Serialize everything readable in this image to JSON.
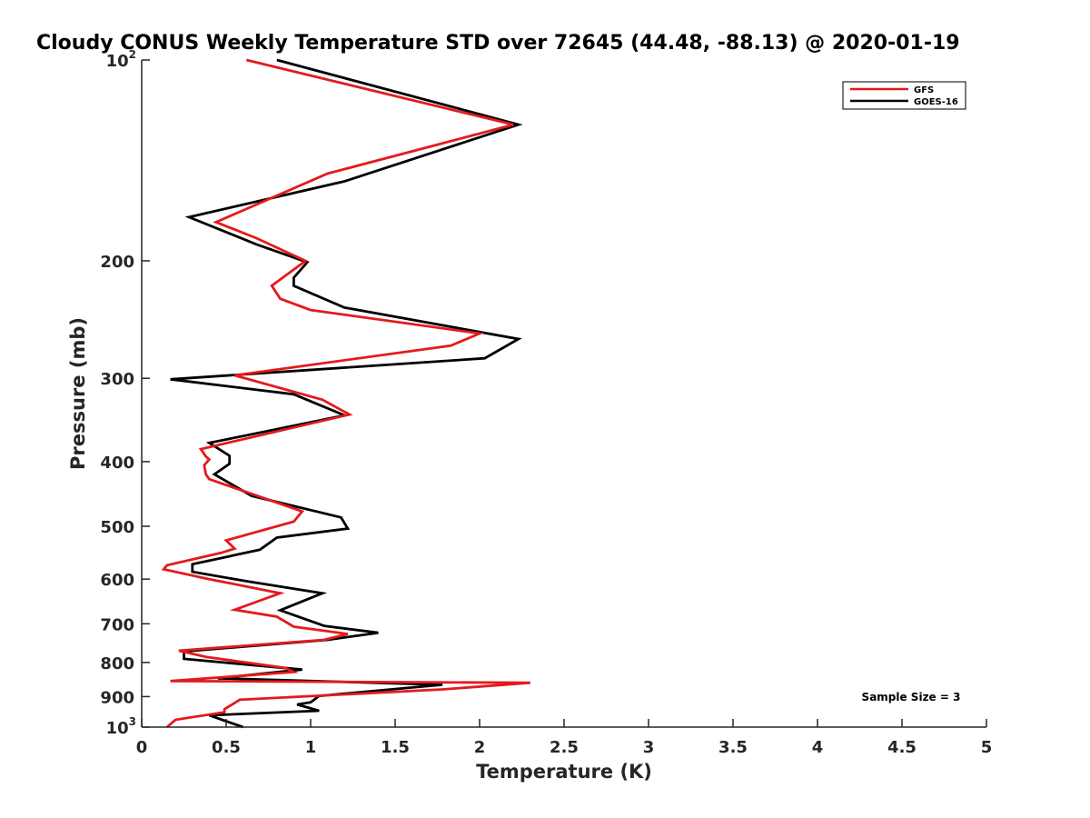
{
  "chart_data": {
    "type": "line",
    "title": "Cloudy CONUS Weekly Temperature STD over 72645 (44.48, -88.13) @ 2020-01-19",
    "xlabel": "Temperature (K)",
    "ylabel": "Pressure (mb)",
    "xlim": [
      0,
      5
    ],
    "ylim": [
      100,
      1000
    ],
    "y_scale": "log",
    "y_reversed": true,
    "grid": false,
    "legend_position": "top-right",
    "x_ticks": [
      "0",
      "0.5",
      "1",
      "1.5",
      "2",
      "2.5",
      "3",
      "3.5",
      "4",
      "4.5",
      "5"
    ],
    "y_ticks": [
      {
        "base": "10",
        "exp": "2",
        "value": 100
      },
      {
        "base": "200",
        "exp": "",
        "value": 200
      },
      {
        "base": "300",
        "exp": "",
        "value": 300
      },
      {
        "base": "400",
        "exp": "",
        "value": 400
      },
      {
        "base": "500",
        "exp": "",
        "value": 500
      },
      {
        "base": "600",
        "exp": "",
        "value": 600
      },
      {
        "base": "700",
        "exp": "",
        "value": 700
      },
      {
        "base": "800",
        "exp": "",
        "value": 800
      },
      {
        "base": "900",
        "exp": "",
        "value": 900
      },
      {
        "base": "10",
        "exp": "3",
        "value": 1000
      }
    ],
    "annotation": "Sample Size = 3",
    "series": [
      {
        "name": "GFS",
        "color": "#e41a1c",
        "points": [
          [
            0.62,
            100
          ],
          [
            2.2,
            125
          ],
          [
            1.1,
            148
          ],
          [
            0.44,
            175
          ],
          [
            0.68,
            185
          ],
          [
            0.97,
            200
          ],
          [
            0.77,
            218
          ],
          [
            0.82,
            228
          ],
          [
            1.0,
            237
          ],
          [
            2.0,
            257
          ],
          [
            1.83,
            268
          ],
          [
            0.55,
            297
          ],
          [
            1.07,
            323
          ],
          [
            1.23,
            340
          ],
          [
            0.35,
            383
          ],
          [
            0.38,
            393
          ],
          [
            0.4,
            397
          ],
          [
            0.37,
            405
          ],
          [
            0.38,
            418
          ],
          [
            0.4,
            425
          ],
          [
            0.95,
            475
          ],
          [
            0.9,
            492
          ],
          [
            0.5,
            525
          ],
          [
            0.55,
            540
          ],
          [
            0.47,
            548
          ],
          [
            0.15,
            572
          ],
          [
            0.13,
            580
          ],
          [
            0.4,
            600
          ],
          [
            0.82,
            630
          ],
          [
            0.55,
            667
          ],
          [
            0.8,
            683
          ],
          [
            0.9,
            707
          ],
          [
            1.22,
            725
          ],
          [
            1.08,
            740
          ],
          [
            0.22,
            768
          ],
          [
            0.38,
            785
          ],
          [
            0.85,
            815
          ],
          [
            0.9,
            827
          ],
          [
            0.17,
            853
          ],
          [
            2.3,
            858
          ],
          [
            1.78,
            878
          ],
          [
            0.58,
            910
          ],
          [
            0.55,
            920
          ],
          [
            0.49,
            940
          ],
          [
            0.49,
            950
          ],
          [
            0.2,
            975
          ],
          [
            0.15,
            1000
          ]
        ]
      },
      {
        "name": "GOES-16",
        "color": "#000000",
        "points": [
          [
            0.8,
            100
          ],
          [
            2.23,
            125
          ],
          [
            1.2,
            152
          ],
          [
            0.28,
            172
          ],
          [
            0.68,
            189
          ],
          [
            0.98,
            201
          ],
          [
            0.9,
            212
          ],
          [
            0.9,
            218
          ],
          [
            1.2,
            235
          ],
          [
            2.23,
            262
          ],
          [
            2.03,
            280
          ],
          [
            0.17,
            301
          ],
          [
            0.9,
            317
          ],
          [
            1.2,
            341
          ],
          [
            0.4,
            375
          ],
          [
            0.52,
            392
          ],
          [
            0.52,
            403
          ],
          [
            0.43,
            418
          ],
          [
            0.65,
            450
          ],
          [
            1.18,
            485
          ],
          [
            1.22,
            504
          ],
          [
            0.8,
            520
          ],
          [
            0.7,
            542
          ],
          [
            0.3,
            570
          ],
          [
            0.3,
            585
          ],
          [
            0.63,
            605
          ],
          [
            1.07,
            630
          ],
          [
            0.82,
            668
          ],
          [
            1.08,
            705
          ],
          [
            1.4,
            722
          ],
          [
            1.1,
            740
          ],
          [
            0.25,
            770
          ],
          [
            0.25,
            790
          ],
          [
            0.95,
            820
          ],
          [
            0.45,
            845
          ],
          [
            1.78,
            864
          ],
          [
            1.05,
            898
          ],
          [
            1.0,
            918
          ],
          [
            0.92,
            925
          ],
          [
            1.05,
            945
          ],
          [
            0.4,
            960
          ],
          [
            0.6,
            1000
          ]
        ]
      }
    ]
  }
}
